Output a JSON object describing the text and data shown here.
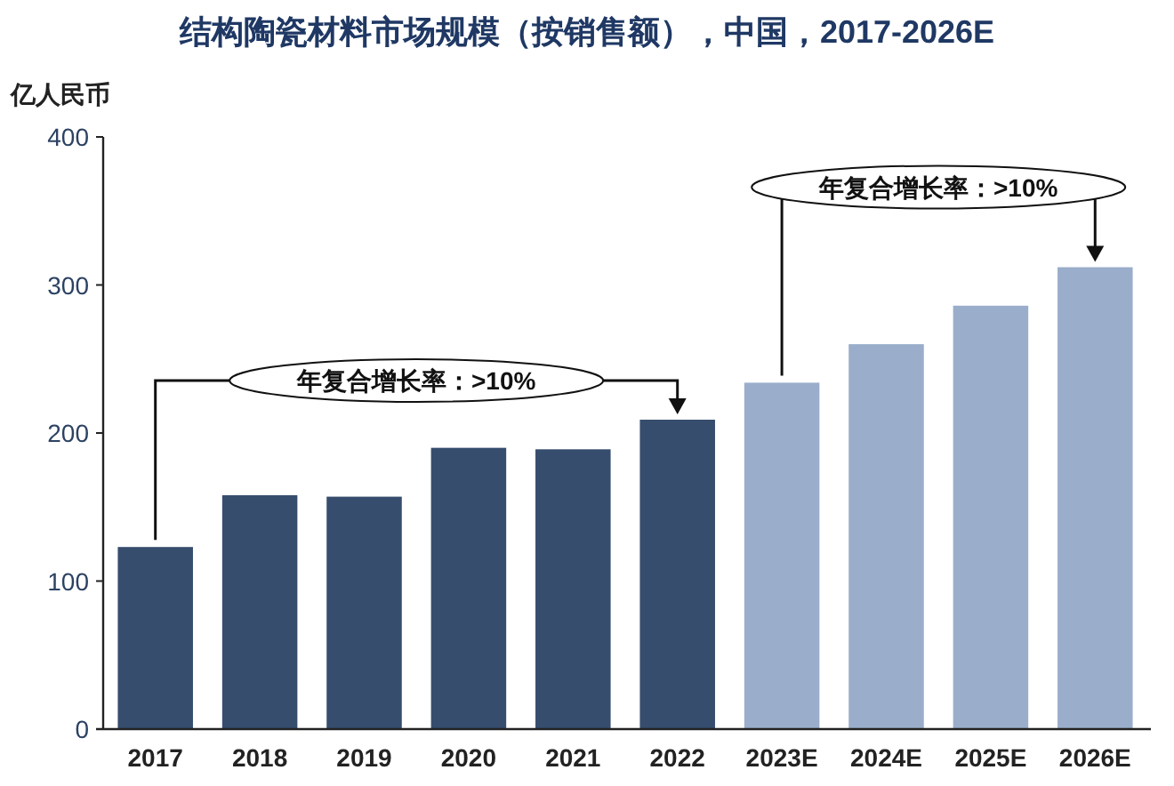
{
  "chart_data": {
    "type": "bar",
    "title": "结构陶瓷材料市场规模（按销售额），中国，2017-2026E",
    "ylabel": "亿人民币",
    "categories": [
      "2017",
      "2018",
      "2019",
      "2020",
      "2021",
      "2022",
      "2023E",
      "2024E",
      "2025E",
      "2026E"
    ],
    "values": [
      123,
      158,
      157,
      190,
      189,
      209,
      234,
      260,
      286,
      312
    ],
    "colors": [
      "#364d6e",
      "#364d6e",
      "#364d6e",
      "#364d6e",
      "#364d6e",
      "#364d6e",
      "#9aaecb",
      "#9aaecb",
      "#9aaecb",
      "#9aaecb"
    ],
    "ylim": [
      0,
      400
    ],
    "yticks": [
      0,
      100,
      200,
      300,
      400
    ],
    "grid": false,
    "annotations": [
      "年复合增长率：>10%",
      "年复合增长率：>10%"
    ]
  }
}
